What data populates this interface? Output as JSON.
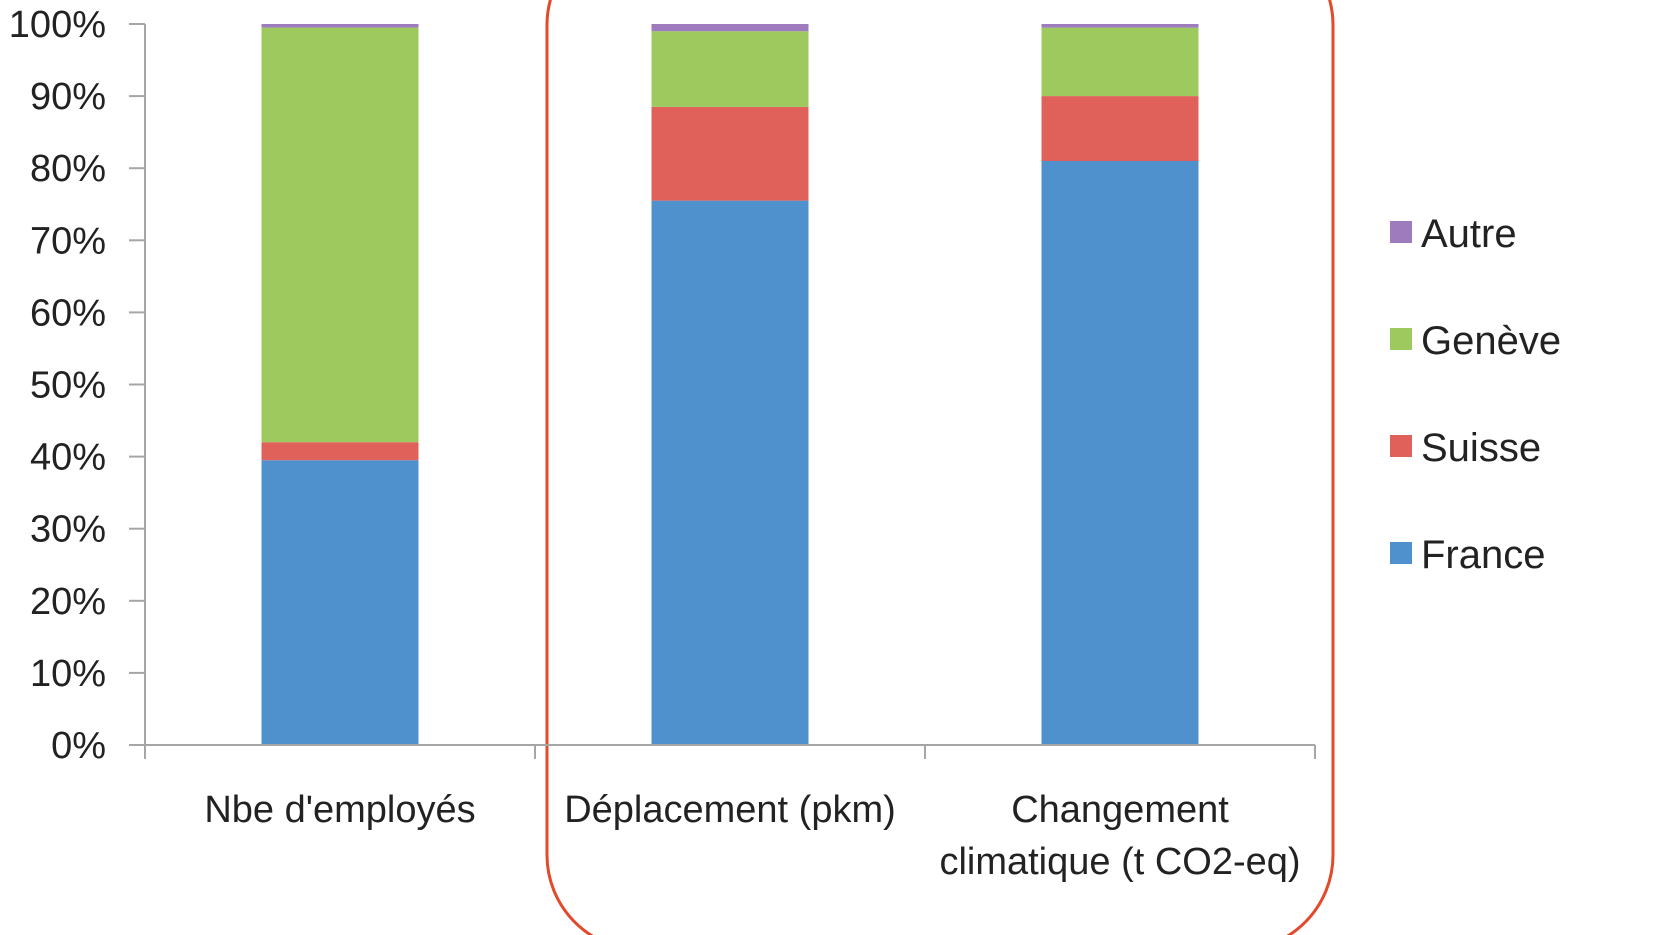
{
  "chart_data": {
    "type": "bar",
    "stacked": true,
    "categories": [
      [
        "Nbe d'employés"
      ],
      [
        "Déplacement (pkm)"
      ],
      [
        "Changement",
        "climatique (t CO2-eq)"
      ]
    ],
    "series": [
      {
        "name": "France",
        "color": "#4F91CD",
        "values": [
          39.5,
          75.5,
          81
        ]
      },
      {
        "name": "Suisse",
        "color": "#E0605A",
        "values": [
          2.5,
          13,
          9
        ]
      },
      {
        "name": "Genève",
        "color": "#9DC95F",
        "values": [
          57.5,
          10.5,
          9.5
        ]
      },
      {
        "name": "Autre",
        "color": "#9D7BBD",
        "values": [
          0.5,
          1,
          0.5
        ]
      }
    ],
    "yticks": [
      "0%",
      "10%",
      "20%",
      "30%",
      "40%",
      "50%",
      "60%",
      "70%",
      "80%",
      "90%",
      "100%"
    ],
    "ylim": [
      0,
      100
    ],
    "legend_order": [
      "Autre",
      "Genève",
      "Suisse",
      "France"
    ],
    "legend_position": "right",
    "highlight_color": "#E24A2B",
    "highlighted_categories": [
      1,
      2
    ],
    "grid": false
  }
}
